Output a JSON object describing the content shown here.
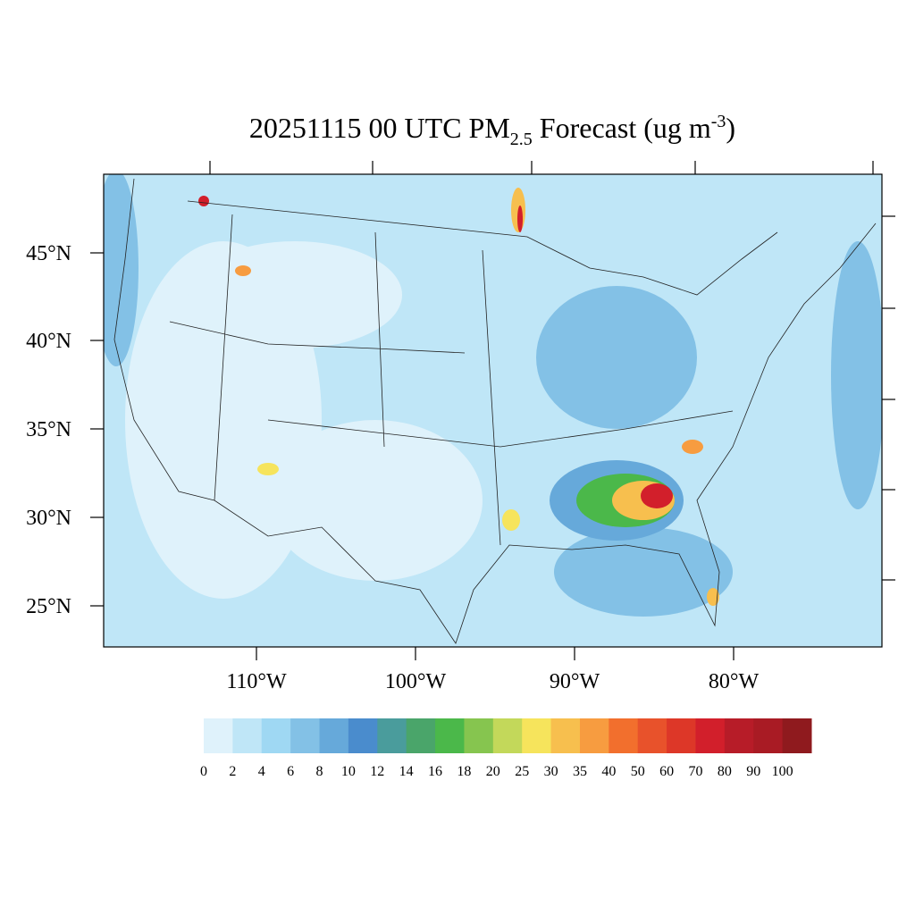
{
  "title": {
    "main": "20251115 00 UTC PM",
    "subscript": "2.5",
    "rest": " Forecast (ug m",
    "superscript": "-3",
    "close": ")"
  },
  "lat_labels": [
    "45°N",
    "40°N",
    "35°N",
    "30°N",
    "25°N"
  ],
  "lon_labels": [
    "110°W",
    "100°W",
    "90°W",
    "80°W"
  ],
  "colorbar": {
    "levels": [
      0,
      2,
      4,
      6,
      8,
      10,
      12,
      14,
      16,
      18,
      20,
      25,
      30,
      35,
      40,
      50,
      60,
      70,
      80,
      90,
      100
    ],
    "colors": [
      "#dff2fb",
      "#bfe6f7",
      "#9fd8f3",
      "#83c1e6",
      "#66a9da",
      "#4a8ccd",
      "#4a9c9c",
      "#4aa56a",
      "#4bb84a",
      "#86c54f",
      "#c3d85a",
      "#f6e45c",
      "#f7bf4e",
      "#f79c40",
      "#f26f2d",
      "#e8522b",
      "#dd3728",
      "#d21f2b",
      "#b71c28",
      "#a91b24",
      "#8f1a1e"
    ]
  }
}
